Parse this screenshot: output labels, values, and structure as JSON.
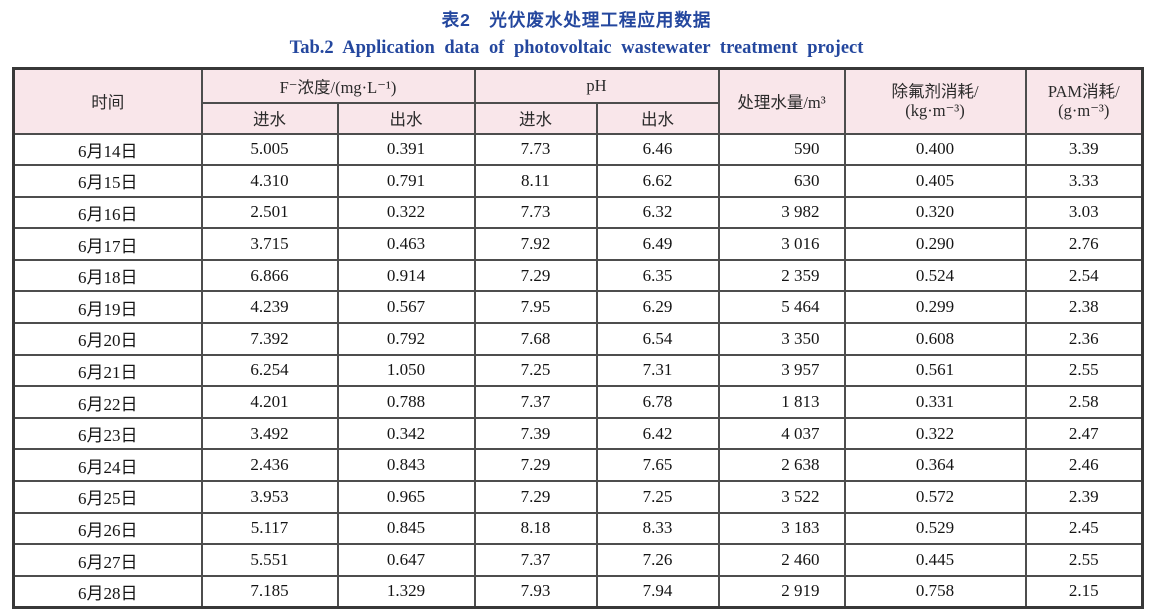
{
  "titles": {
    "zh": "表2　光伏废水处理工程应用数据",
    "en": "Tab.2  Application data of photovoltaic wastewater treatment project"
  },
  "table": {
    "headers": {
      "time": "时间",
      "f_group": "F⁻浓度/(mg·L⁻¹)",
      "ph_group": "pH",
      "f_in": "进水",
      "f_out": "出水",
      "ph_in": "进水",
      "ph_out": "出水",
      "volume": "处理水量/m³",
      "defluorinant_line1": "除氟剂消耗/",
      "defluorinant_line2": "(kg·m⁻³)",
      "pam_line1": "PAM消耗/",
      "pam_line2": "(g·m⁻³)"
    },
    "rows": [
      {
        "date": "6月14日",
        "f_in": "5.005",
        "f_out": "0.391",
        "ph_in": "7.73",
        "ph_out": "6.46",
        "volume": "590",
        "defluorinant": "0.400",
        "pam": "3.39"
      },
      {
        "date": "6月15日",
        "f_in": "4.310",
        "f_out": "0.791",
        "ph_in": "8.11",
        "ph_out": "6.62",
        "volume": "630",
        "defluorinant": "0.405",
        "pam": "3.33"
      },
      {
        "date": "6月16日",
        "f_in": "2.501",
        "f_out": "0.322",
        "ph_in": "7.73",
        "ph_out": "6.32",
        "volume": "3 982",
        "defluorinant": "0.320",
        "pam": "3.03"
      },
      {
        "date": "6月17日",
        "f_in": "3.715",
        "f_out": "0.463",
        "ph_in": "7.92",
        "ph_out": "6.49",
        "volume": "3 016",
        "defluorinant": "0.290",
        "pam": "2.76"
      },
      {
        "date": "6月18日",
        "f_in": "6.866",
        "f_out": "0.914",
        "ph_in": "7.29",
        "ph_out": "6.35",
        "volume": "2 359",
        "defluorinant": "0.524",
        "pam": "2.54"
      },
      {
        "date": "6月19日",
        "f_in": "4.239",
        "f_out": "0.567",
        "ph_in": "7.95",
        "ph_out": "6.29",
        "volume": "5 464",
        "defluorinant": "0.299",
        "pam": "2.38"
      },
      {
        "date": "6月20日",
        "f_in": "7.392",
        "f_out": "0.792",
        "ph_in": "7.68",
        "ph_out": "6.54",
        "volume": "3 350",
        "defluorinant": "0.608",
        "pam": "2.36"
      },
      {
        "date": "6月21日",
        "f_in": "6.254",
        "f_out": "1.050",
        "ph_in": "7.25",
        "ph_out": "7.31",
        "volume": "3 957",
        "defluorinant": "0.561",
        "pam": "2.55"
      },
      {
        "date": "6月22日",
        "f_in": "4.201",
        "f_out": "0.788",
        "ph_in": "7.37",
        "ph_out": "6.78",
        "volume": "1 813",
        "defluorinant": "0.331",
        "pam": "2.58"
      },
      {
        "date": "6月23日",
        "f_in": "3.492",
        "f_out": "0.342",
        "ph_in": "7.39",
        "ph_out": "6.42",
        "volume": "4 037",
        "defluorinant": "0.322",
        "pam": "2.47"
      },
      {
        "date": "6月24日",
        "f_in": "2.436",
        "f_out": "0.843",
        "ph_in": "7.29",
        "ph_out": "7.65",
        "volume": "2 638",
        "defluorinant": "0.364",
        "pam": "2.46"
      },
      {
        "date": "6月25日",
        "f_in": "3.953",
        "f_out": "0.965",
        "ph_in": "7.29",
        "ph_out": "7.25",
        "volume": "3 522",
        "defluorinant": "0.572",
        "pam": "2.39"
      },
      {
        "date": "6月26日",
        "f_in": "5.117",
        "f_out": "0.845",
        "ph_in": "8.18",
        "ph_out": "8.33",
        "volume": "3 183",
        "defluorinant": "0.529",
        "pam": "2.45"
      },
      {
        "date": "6月27日",
        "f_in": "5.551",
        "f_out": "0.647",
        "ph_in": "7.37",
        "ph_out": "7.26",
        "volume": "2 460",
        "defluorinant": "0.445",
        "pam": "2.55"
      },
      {
        "date": "6月28日",
        "f_in": "7.185",
        "f_out": "1.329",
        "ph_in": "7.93",
        "ph_out": "7.94",
        "volume": "2 919",
        "defluorinant": "0.758",
        "pam": "2.15"
      }
    ]
  },
  "colors": {
    "title_blue": "#24479e",
    "header_pink": "#f9e6ea",
    "border_dark": "#4d4d4d",
    "outer_border": "#383838"
  }
}
